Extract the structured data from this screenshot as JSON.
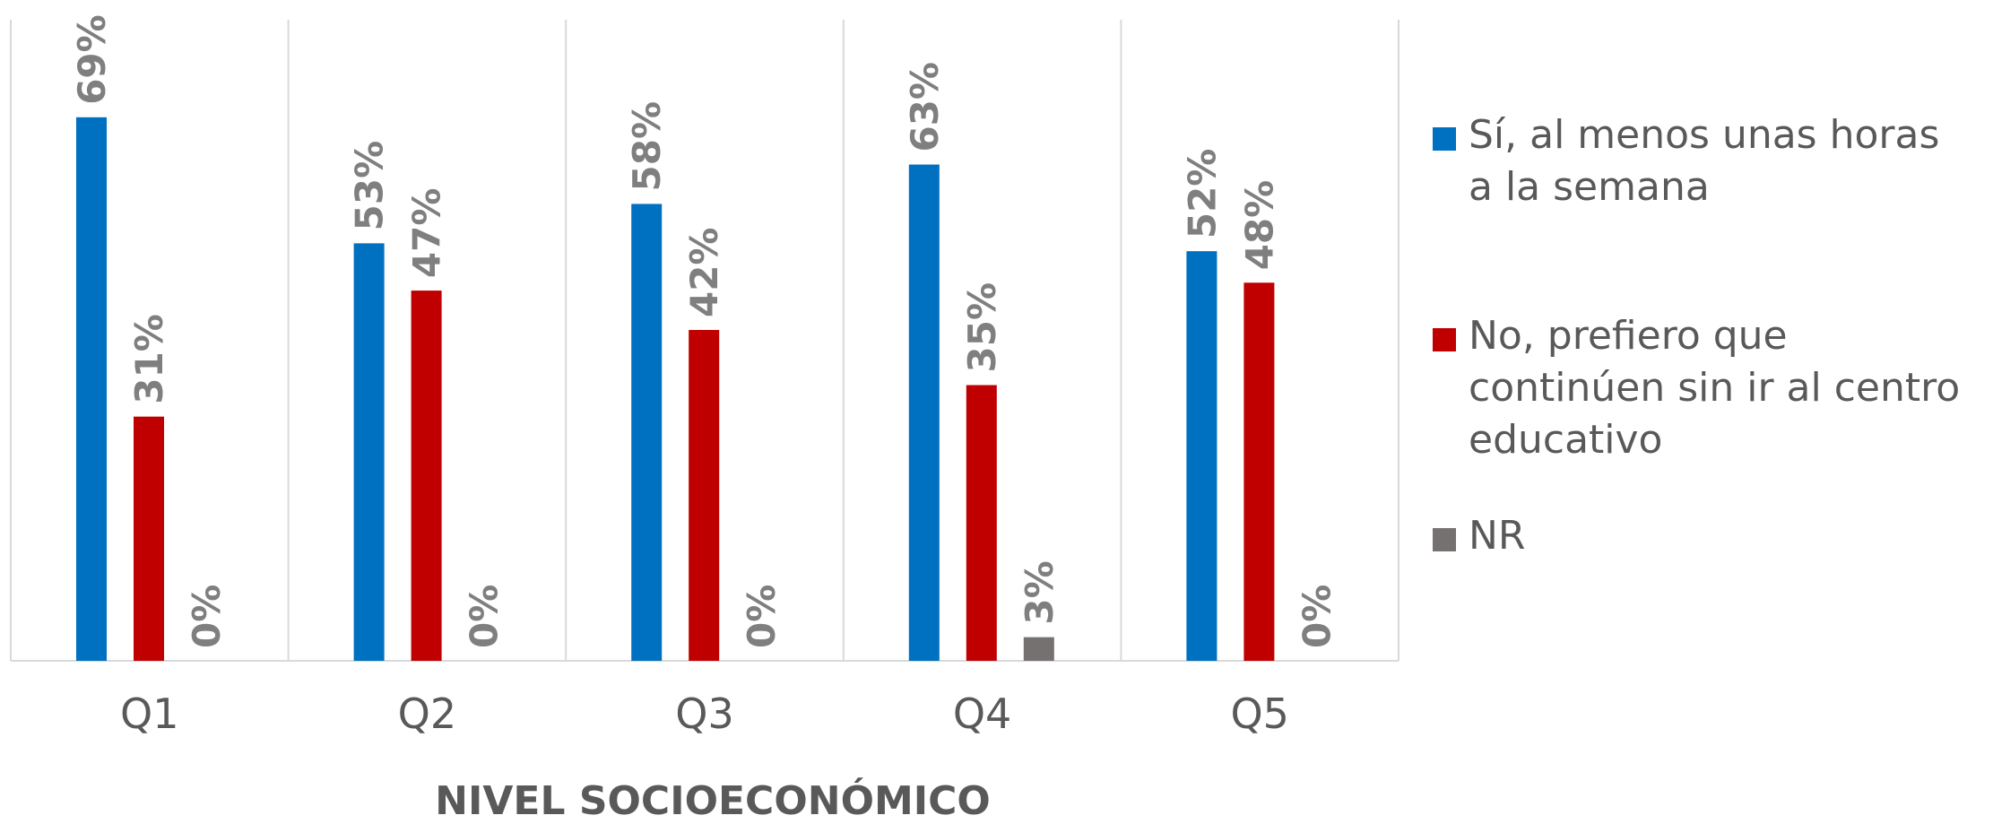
{
  "chart_data": {
    "type": "bar",
    "categories": [
      "Q1",
      "Q2",
      "Q3",
      "Q4",
      "Q5"
    ],
    "series": [
      {
        "name": "Sí, al menos unas horas a la semana",
        "color": "#0070C0",
        "values": [
          69,
          53,
          58,
          63,
          52
        ],
        "labels": [
          "69%",
          "53%",
          "58%",
          "63%",
          "52%"
        ]
      },
      {
        "name": "No, prefiero que continúen sin ir al centro educativo",
        "color": "#C00000",
        "values": [
          31,
          47,
          42,
          35,
          48
        ],
        "labels": [
          "31%",
          "47%",
          "42%",
          "35%",
          "48%"
        ]
      },
      {
        "name": "NR",
        "color": "#767171",
        "values": [
          0,
          0,
          0,
          3,
          0
        ],
        "labels": [
          "0%",
          "0%",
          "0%",
          "3%",
          "0%"
        ]
      }
    ],
    "xlabel": "NIVEL SOCIOECONÓMICO",
    "ylim": [
      0,
      80
    ],
    "grid": "vertical separators",
    "legend_position": "right"
  }
}
